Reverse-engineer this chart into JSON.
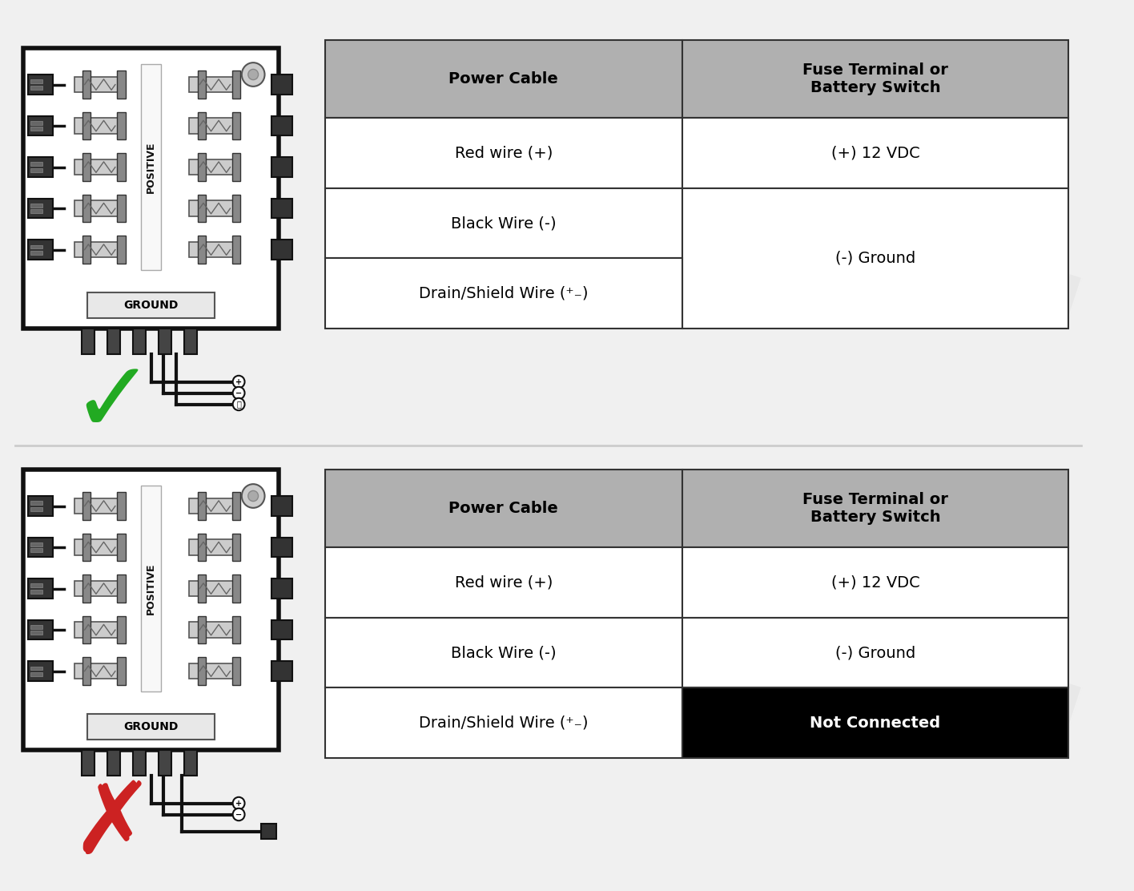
{
  "overall_bg": "#f0f0f0",
  "table1": {
    "header": [
      "Power Cable",
      "Fuse Terminal or\nBattery Switch"
    ],
    "rows": [
      [
        "Red wire (+)",
        "(+) 12 VDC"
      ],
      [
        "Black Wire (-)",
        ""
      ],
      [
        "Drain/Shield Wire (⁺₋)",
        "(-) Ground"
      ]
    ],
    "merged_rows_col2": [
      1,
      2
    ],
    "merged_text": "(-) Ground",
    "header_bg": "#b0b0b0",
    "row_bg": "#ffffff",
    "border_color": "#333333"
  },
  "table2": {
    "header": [
      "Power Cable",
      "Fuse Terminal or\nBattery Switch"
    ],
    "rows": [
      [
        "Red wire (+)",
        "(+) 12 VDC"
      ],
      [
        "Black Wire (-)",
        "(-) Ground"
      ],
      [
        "Drain/Shield Wire (⁺₋)",
        "Not Connected"
      ]
    ],
    "last_row_col2_bg": "#000000",
    "last_row_col2_fg": "#ffffff",
    "header_bg": "#b0b0b0",
    "row_bg": "#ffffff",
    "border_color": "#333333"
  },
  "check_color": "#22aa22",
  "x_color": "#cc2222",
  "divider_color": "#cccccc",
  "panel_outer_color": "#111111",
  "panel_inner_bg": "#ffffff",
  "connector_color": "#222222",
  "fuse_bg": "#cccccc",
  "ground_label_bg": "#eeeeee",
  "positive_label": "POSITIVE",
  "ground_label": "GROUND"
}
